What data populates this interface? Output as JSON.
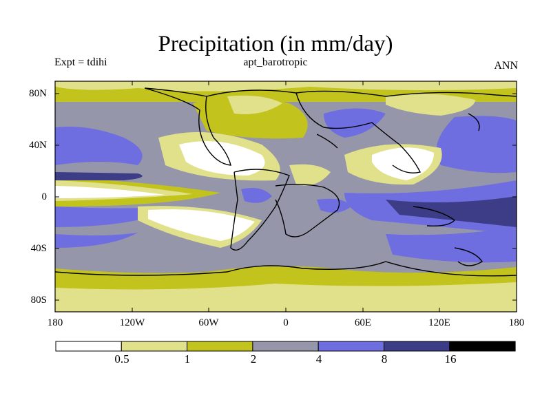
{
  "title": "Precipitation (in mm/day)",
  "experiment": "Expt = tdihi",
  "case_name": "apt_barotropic",
  "season": "ANN",
  "y_ticks": [
    "80N",
    "40N",
    "0",
    "40S",
    "80S"
  ],
  "x_ticks": [
    "180",
    "120W",
    "60W",
    "0",
    "60E",
    "120E",
    "180"
  ],
  "legend": {
    "labels": [
      "0.5",
      "1",
      "2",
      "4",
      "8",
      "16"
    ],
    "colors": [
      "#ffffff",
      "#e1e18c",
      "#c3c31e",
      "#9696aa",
      "#6e6ee1",
      "#3c3c87",
      "#000000"
    ]
  }
}
